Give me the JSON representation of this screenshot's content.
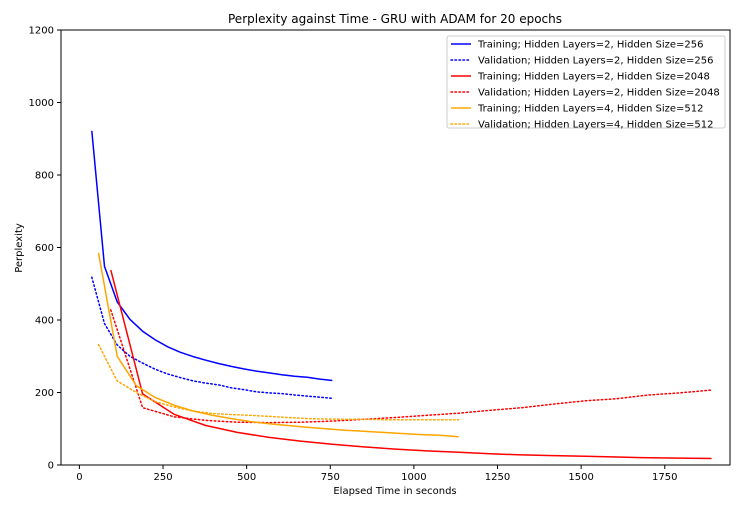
{
  "chart_data": {
    "type": "line",
    "title": "Perplexity against Time - GRU with ADAM for 20 epochs",
    "xlabel": "Elapsed Time in seconds",
    "ylabel": "Perplexity",
    "xlim": [
      -55,
      1945
    ],
    "ylim": [
      0,
      1200
    ],
    "xticks": [
      0,
      250,
      500,
      750,
      1000,
      1250,
      1500,
      1750
    ],
    "yticks": [
      0,
      200,
      400,
      600,
      800,
      1000,
      1200
    ],
    "grid": false,
    "legend_position": "top-right",
    "series": [
      {
        "name": "Training; Hidden Layers=2, Hidden Size=256",
        "color": "#0000ff",
        "style": "solid",
        "x": [
          37,
          75,
          113,
          151,
          189,
          227,
          264,
          302,
          340,
          378,
          416,
          454,
          491,
          529,
          567,
          605,
          643,
          681,
          719,
          756
        ],
        "y": [
          922,
          548,
          450,
          402,
          369,
          345,
          326,
          311,
          299,
          289,
          280,
          272,
          265,
          259,
          254,
          249,
          245,
          242,
          237,
          233
        ]
      },
      {
        "name": "Validation; Hidden Layers=2, Hidden Size=256",
        "color": "#0000ff",
        "style": "dotted",
        "x": [
          37,
          75,
          113,
          151,
          189,
          227,
          264,
          302,
          340,
          378,
          416,
          454,
          491,
          529,
          567,
          605,
          643,
          681,
          719,
          756
        ],
        "y": [
          518,
          390,
          331,
          300,
          281,
          264,
          251,
          241,
          232,
          226,
          221,
          213,
          208,
          202,
          199,
          197,
          193,
          190,
          187,
          184
        ]
      },
      {
        "name": "Training; Hidden Layers=2, Hidden Size=2048",
        "color": "#ff0000",
        "style": "solid",
        "x": [
          94,
          189,
          283,
          378,
          472,
          567,
          661,
          756,
          850,
          945,
          1039,
          1134,
          1228,
          1323,
          1417,
          1512,
          1606,
          1701,
          1795,
          1890
        ],
        "y": [
          538,
          196,
          140,
          109,
          90,
          76,
          66,
          57,
          50,
          44,
          39,
          35,
          31,
          28,
          26,
          24,
          22,
          20,
          19,
          18
        ]
      },
      {
        "name": "Validation; Hidden Layers=2, Hidden Size=2048",
        "color": "#ff0000",
        "style": "dotted",
        "x": [
          94,
          189,
          283,
          378,
          472,
          567,
          661,
          756,
          850,
          945,
          1039,
          1134,
          1228,
          1323,
          1417,
          1512,
          1606,
          1701,
          1795,
          1890
        ],
        "y": [
          428,
          158,
          133,
          123,
          118,
          117,
          118,
          121,
          126,
          131,
          137,
          143,
          151,
          158,
          168,
          177,
          183,
          193,
          199,
          207
        ]
      },
      {
        "name": "Training; Hidden Layers=4, Hidden Size=512",
        "color": "#ffa500",
        "style": "solid",
        "x": [
          57,
          113,
          170,
          227,
          283,
          340,
          397,
          454,
          510,
          567,
          624,
          680,
          737,
          794,
          850,
          907,
          964,
          1021,
          1077,
          1134
        ],
        "y": [
          585,
          300,
          219,
          186,
          165,
          149,
          137,
          128,
          120,
          114,
          109,
          104,
          100,
          96,
          93,
          90,
          87,
          84,
          82,
          78
        ]
      },
      {
        "name": "Validation; Hidden Layers=4, Hidden Size=512",
        "color": "#ffa500",
        "style": "dotted",
        "x": [
          57,
          113,
          170,
          227,
          283,
          340,
          397,
          454,
          510,
          567,
          624,
          680,
          737,
          794,
          850,
          907,
          964,
          1021,
          1077,
          1134
        ],
        "y": [
          332,
          232,
          200,
          175,
          160,
          149,
          142,
          139,
          137,
          134,
          131,
          128,
          127,
          126,
          126,
          125,
          125,
          125,
          125,
          125
        ]
      }
    ]
  }
}
